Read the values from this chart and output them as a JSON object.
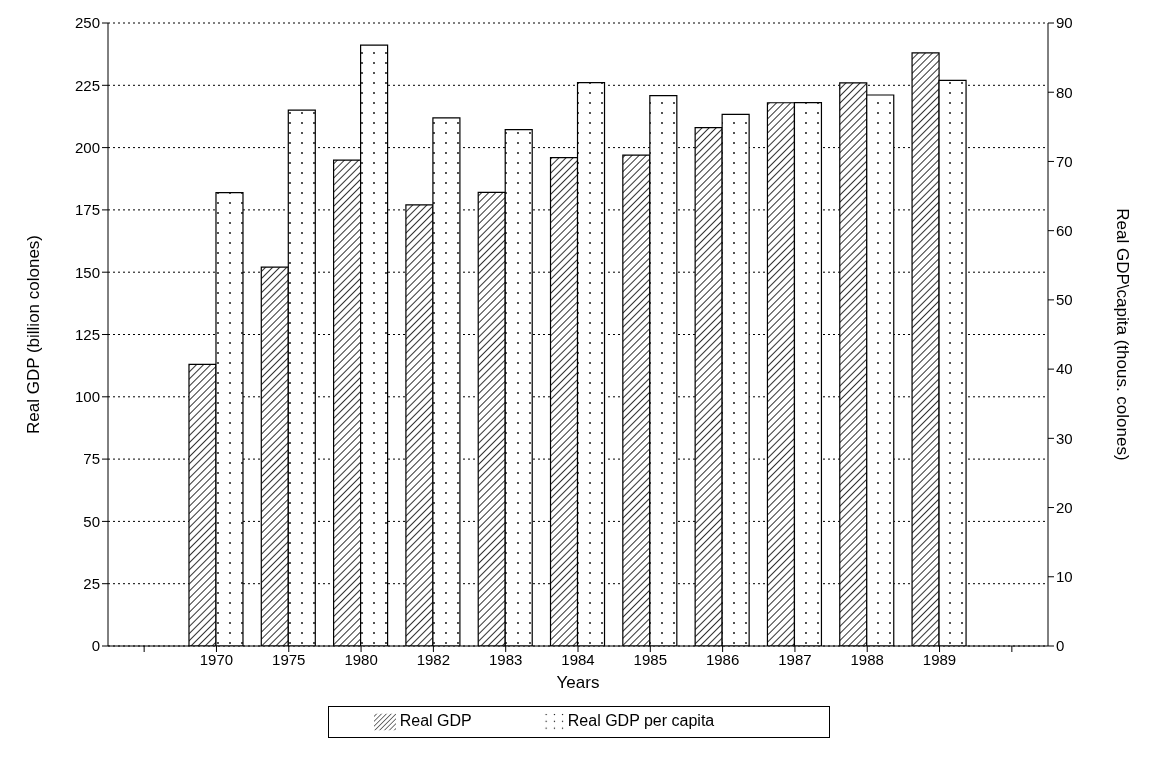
{
  "chart_data": {
    "type": "bar",
    "xlabel": "Years",
    "ylabel": "Real GDP (billion colones)",
    "y2label": "Real GDP\\capita (thous. colones)",
    "categories": [
      null,
      "1970",
      "1975",
      "1980",
      "1982",
      "1983",
      "1984",
      "1985",
      "1986",
      "1987",
      "1988",
      "1989",
      null
    ],
    "series": [
      {
        "name": "Real GDP",
        "color": "#000000",
        "values": [
          null,
          113,
          152,
          195,
          177,
          182,
          196,
          197,
          208,
          218,
          226,
          238,
          null
        ]
      },
      {
        "name": "Real GDP per capita",
        "color": "#000000",
        "axis": "y2",
        "values": [
          null,
          65.5,
          77.4,
          86.8,
          76.3,
          74.6,
          81.4,
          79.5,
          76.8,
          78.5,
          79.6,
          81.7,
          null
        ]
      }
    ],
    "ylim": [
      0,
      250
    ],
    "yticks": [
      0,
      25,
      50,
      75,
      100,
      125,
      150,
      175,
      200,
      225,
      250
    ],
    "y2lim": [
      0,
      90
    ],
    "y2ticks": [
      0,
      10,
      20,
      30,
      40,
      50,
      60,
      70,
      80,
      90
    ],
    "grid": "y",
    "legend": "bottom"
  }
}
